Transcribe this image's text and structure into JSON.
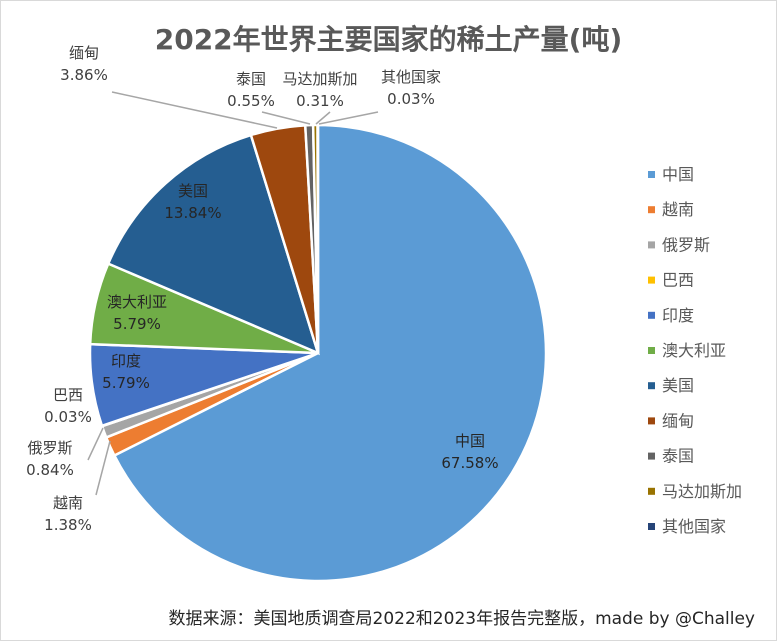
{
  "chart_data": {
    "type": "pie",
    "title": "2022年世界主要国家的稀土产量(吨)",
    "footer": "数据来源：美国地质调查局2022和2023年报告完整版，made by @Challey",
    "legend_position": "right",
    "slices": [
      {
        "name": "中国",
        "percent": 67.58,
        "label": "67.58%",
        "color": "#5B9BD5"
      },
      {
        "name": "越南",
        "percent": 1.38,
        "label": "1.38%",
        "color": "#ED7D31"
      },
      {
        "name": "俄罗斯",
        "percent": 0.84,
        "label": "0.84%",
        "color": "#A5A5A5"
      },
      {
        "name": "巴西",
        "percent": 0.03,
        "label": "0.03%",
        "color": "#FFC000"
      },
      {
        "name": "印度",
        "percent": 5.79,
        "label": "5.79%",
        "color": "#4472C4"
      },
      {
        "name": "澳大利亚",
        "percent": 5.79,
        "label": "5.79%",
        "color": "#70AD47"
      },
      {
        "name": "美国",
        "percent": 13.84,
        "label": "13.84%",
        "color": "#255E91"
      },
      {
        "name": "缅甸",
        "percent": 3.86,
        "label": "3.86%",
        "color": "#9E480E"
      },
      {
        "name": "泰国",
        "percent": 0.55,
        "label": "0.55%",
        "color": "#636363"
      },
      {
        "name": "马达加斯加",
        "percent": 0.31,
        "label": "0.31%",
        "color": "#997300"
      },
      {
        "name": "其他国家",
        "percent": 0.03,
        "label": "0.03%",
        "color": "#264478"
      }
    ]
  }
}
